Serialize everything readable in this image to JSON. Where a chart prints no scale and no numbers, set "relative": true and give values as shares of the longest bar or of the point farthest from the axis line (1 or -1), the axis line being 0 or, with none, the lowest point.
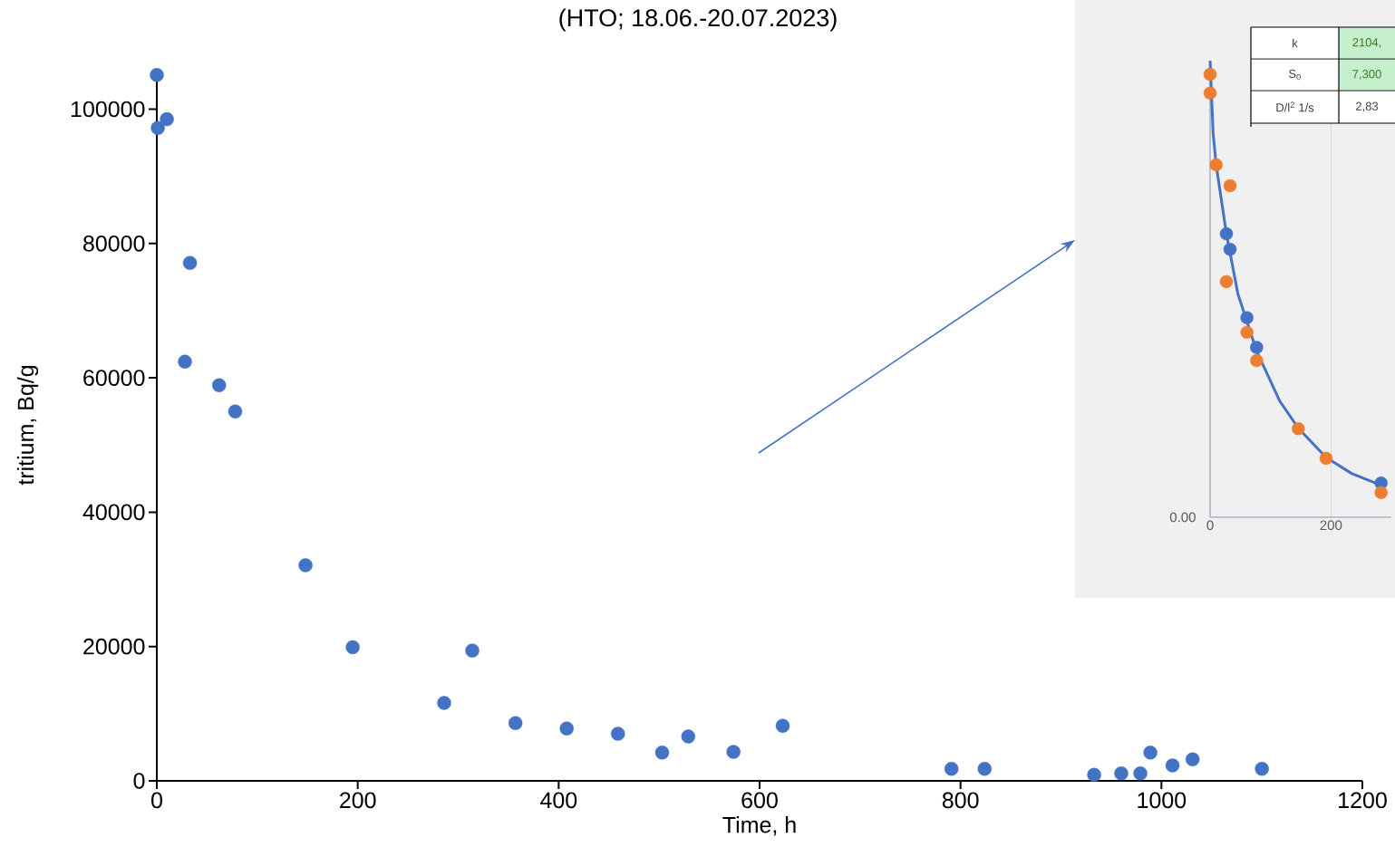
{
  "chart_data": [
    {
      "type": "scatter",
      "title": "(HTO; 18.06.-20.07.2023)",
      "xlabel": "Time, h",
      "ylabel": "tritium, Bq/g",
      "series": [
        {
          "marker": "circle",
          "color": "#4472c4",
          "x": [
            0,
            1,
            10,
            28,
            33,
            62,
            78,
            148,
            195,
            286,
            314,
            357,
            408,
            459,
            503,
            529,
            574,
            623,
            791,
            824,
            933,
            960,
            979,
            989,
            1011,
            1031,
            1100
          ],
          "values": [
            105100,
            97200,
            98500,
            62400,
            77100,
            58900,
            55000,
            32100,
            19900,
            11600,
            19400,
            8600,
            7800,
            7000,
            4200,
            6600,
            4300,
            8200,
            1800,
            1800,
            900,
            1100,
            1100,
            4200,
            2300,
            3200,
            1800
          ]
        }
      ],
      "grid": false,
      "xlim": [
        0,
        1200
      ],
      "ylim": [
        0,
        106000
      ],
      "xticks": [
        0,
        200,
        400,
        600,
        800,
        1000,
        1200
      ],
      "yticks": [
        0,
        20000,
        40000,
        60000,
        80000,
        100000
      ]
    },
    {
      "type": "line",
      "relative": true,
      "grid": "x",
      "xlim": [
        0,
        300
      ],
      "xticks": [
        0,
        200
      ],
      "annotations": [
        "k",
        "2104,",
        "S$_{0}$",
        "7,300",
        "D/l$^{2}$  1/s",
        "2,83",
        "0.00"
      ],
      "series": [
        {
          "type": "line",
          "marker": "none",
          "color": "#4472c4",
          "x": [
            0,
            5,
            10,
            27,
            46,
            77,
            115,
            146,
            192,
            234,
            289
          ],
          "values": [
            1.0,
            0.841,
            0.772,
            0.621,
            0.489,
            0.364,
            0.255,
            0.195,
            0.131,
            0.096,
            0.067
          ]
        },
        {
          "type": "scatter",
          "marker": "circle",
          "color": "#4472c4",
          "x": [
            27,
            33,
            61,
            77,
            283
          ],
          "values": [
            0.621,
            0.587,
            0.437,
            0.372,
            0.075
          ]
        },
        {
          "type": "scatter",
          "marker": "circle",
          "color": "#ed7d31",
          "x": [
            0,
            0,
            10,
            33,
            27,
            61,
            77,
            146,
            192,
            283
          ],
          "values": [
            0.97,
            0.929,
            0.772,
            0.726,
            0.516,
            0.405,
            0.343,
            0.194,
            0.129,
            0.054
          ]
        }
      ]
    }
  ]
}
